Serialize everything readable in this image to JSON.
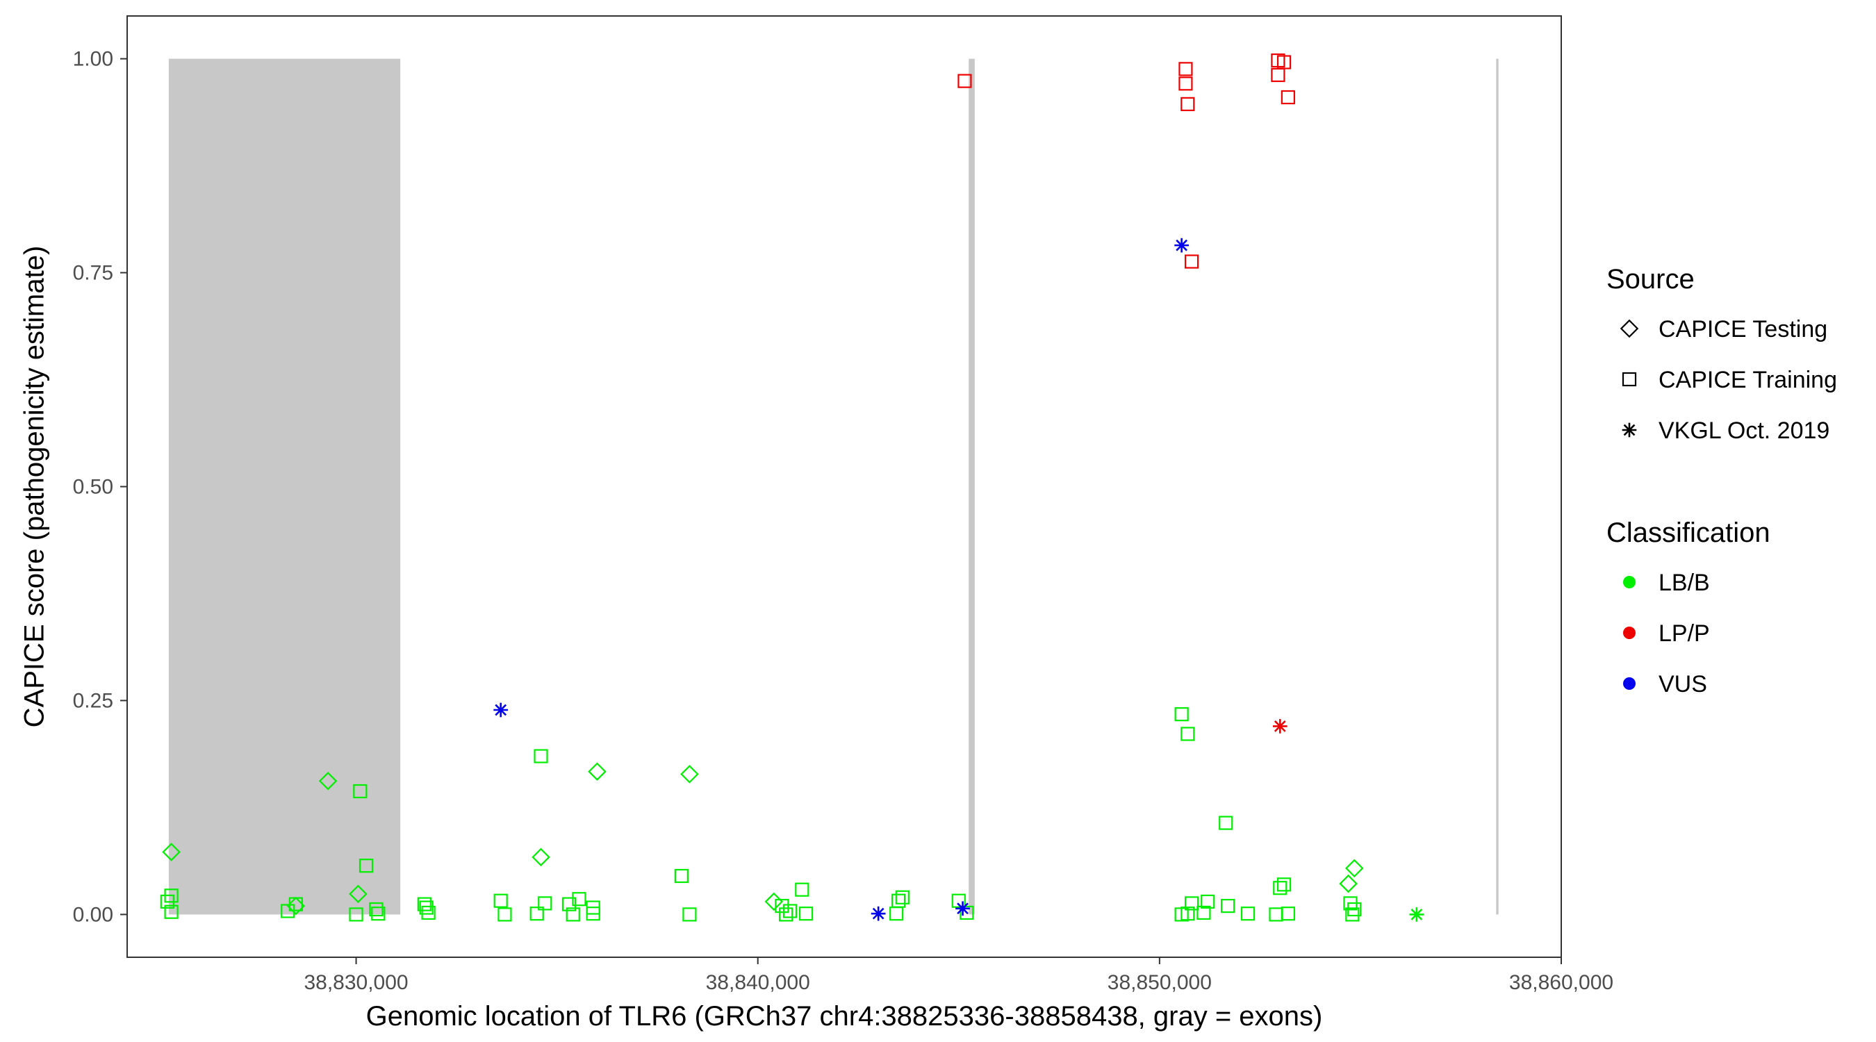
{
  "chart_data": {
    "type": "scatter",
    "xlabel": "Genomic location of TLR6 (GRCh37 chr4:38825336-38858438, gray = exons)",
    "ylabel": "CAPICE score (pathogenicity estimate)",
    "xlim": [
      38824300,
      38860000
    ],
    "ylim": [
      -0.05,
      1.05
    ],
    "x_ticks": [
      38830000,
      38840000,
      38850000,
      38860000
    ],
    "x_tick_labels": [
      "38,830,000",
      "38,840,000",
      "38,850,000",
      "38,860,000"
    ],
    "y_ticks": [
      0,
      0.25,
      0.5,
      0.75,
      1.0
    ],
    "y_tick_labels": [
      "0.00",
      "0.25",
      "0.50",
      "0.75",
      "1.00"
    ],
    "grid": false,
    "legend_position": "right",
    "exons": [
      {
        "start": 38825336,
        "end": 38831100
      },
      {
        "start": 38845250,
        "end": 38845400
      },
      {
        "start": 38858380,
        "end": 38858438
      }
    ],
    "legend": {
      "source_title": "Source",
      "sources": [
        {
          "key": "testing",
          "label": "CAPICE Testing",
          "shape": "diamond"
        },
        {
          "key": "training",
          "label": "CAPICE Training",
          "shape": "square"
        },
        {
          "key": "vkgl",
          "label": "VKGL Oct. 2019",
          "shape": "asterisk"
        }
      ],
      "class_title": "Classification",
      "classes": [
        {
          "key": "LB/B",
          "label": "LB/B",
          "color": "#00ee00"
        },
        {
          "key": "LP/P",
          "label": "LP/P",
          "color": "#ee0000"
        },
        {
          "key": "VUS",
          "label": "VUS",
          "color": "#0000ee"
        }
      ]
    },
    "series": [
      {
        "source": "training",
        "classification": "LB/B",
        "x": [
          38825300,
          38825400,
          38825400,
          38828300,
          38828500,
          38830100,
          38830250,
          38830000,
          38830500,
          38830550,
          38831700,
          38831800,
          38831750,
          38833600,
          38833700,
          38834600,
          38834700,
          38834500,
          38835300,
          38835550,
          38835900,
          38835400,
          38835900,
          38838100,
          38838300,
          38840600,
          38841100,
          38840800,
          38840700,
          38841200,
          38843500,
          38843600,
          38843450,
          38845000,
          38845200,
          38850550,
          38850700,
          38850550,
          38850800,
          38850700,
          38851200,
          38851100,
          38851650,
          38851700,
          38852200,
          38853000,
          38853100,
          38852900,
          38853200,
          38854750,
          38854850,
          38854800
        ],
        "y": [
          0.015,
          0.022,
          0.003,
          0.004,
          0.012,
          0.144,
          0.057,
          0.0,
          0.006,
          0.001,
          0.012,
          0.002,
          0.008,
          0.016,
          0.0,
          0.185,
          0.013,
          0.001,
          0.012,
          0.018,
          0.008,
          0.0,
          0.001,
          0.045,
          0.0,
          0.01,
          0.029,
          0.004,
          0.0,
          0.001,
          0.016,
          0.02,
          0.001,
          0.016,
          0.002,
          0.234,
          0.211,
          0.0,
          0.013,
          0.001,
          0.015,
          0.002,
          0.107,
          0.01,
          0.001,
          0.031,
          0.035,
          0.0,
          0.001,
          0.013,
          0.006,
          0.0
        ]
      },
      {
        "source": "testing",
        "classification": "LB/B",
        "x": [
          38825400,
          38828500,
          38829300,
          38830050,
          38834600,
          38836000,
          38838300,
          38840400,
          38854850,
          38854700
        ],
        "y": [
          0.073,
          0.01,
          0.156,
          0.024,
          0.067,
          0.167,
          0.164,
          0.015,
          0.054,
          0.036
        ]
      },
      {
        "source": "vkgl",
        "classification": "LB/B",
        "x": [
          38856400
        ],
        "y": [
          0.0
        ]
      },
      {
        "source": "training",
        "classification": "LP/P",
        "x": [
          38845150,
          38850650,
          38850650,
          38850700,
          38850800,
          38852950,
          38853100,
          38852950,
          38853200
        ],
        "y": [
          0.974,
          0.988,
          0.971,
          0.947,
          0.763,
          0.998,
          0.996,
          0.981,
          0.955
        ]
      },
      {
        "source": "vkgl",
        "classification": "LP/P",
        "x": [
          38853000
        ],
        "y": [
          0.22
        ]
      },
      {
        "source": "vkgl",
        "classification": "VUS",
        "x": [
          38833600,
          38843000,
          38845100,
          38850550
        ],
        "y": [
          0.239,
          0.001,
          0.007,
          0.782
        ]
      }
    ]
  }
}
